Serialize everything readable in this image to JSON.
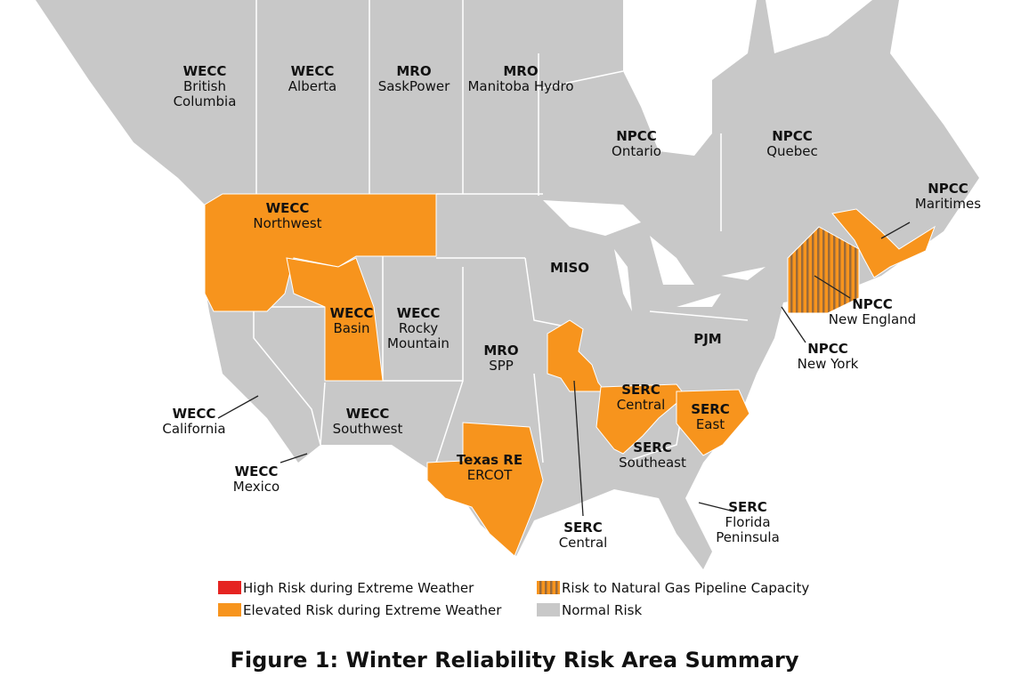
{
  "title": "Figure 1: Winter Reliability Risk Area Summary",
  "legend": [
    {
      "label": "High Risk during Extreme Weather",
      "color": "#e52421"
    },
    {
      "label": "Elevated Risk during Extreme Weather",
      "color": "#f7941d"
    },
    {
      "label": "Risk to Natural Gas Pipeline Capacity",
      "color": "#f7941d",
      "stripe_color": "#9a6a3a"
    },
    {
      "label": "Normal Risk",
      "color": "#c8c8c8"
    }
  ],
  "regions": [
    {
      "org": "WECC",
      "lines": [
        "British",
        "Columbia"
      ],
      "color": "#c8c8c8"
    },
    {
      "org": "WECC",
      "lines": [
        "Alberta"
      ],
      "color": "#c8c8c8"
    },
    {
      "org": "MRO",
      "lines": [
        "SaskPower"
      ],
      "color": "#c8c8c8"
    },
    {
      "org": "MRO",
      "lines": [
        "Manitoba Hydro"
      ],
      "color": "#c8c8c8"
    },
    {
      "org": "NPCC",
      "lines": [
        "Ontario"
      ],
      "color": "#c8c8c8"
    },
    {
      "org": "NPCC",
      "lines": [
        "Quebec"
      ],
      "color": "#c8c8c8"
    },
    {
      "org": "NPCC",
      "lines": [
        "Maritimes"
      ],
      "color": "#f7941d"
    },
    {
      "org": "WECC",
      "lines": [
        "Northwest"
      ],
      "color": "#f7941d"
    },
    {
      "org": "MISO",
      "lines": [],
      "color": "#c8c8c8"
    },
    {
      "org": "NPCC",
      "lines": [
        "New England"
      ],
      "color": "#f7941d",
      "stripe_color": "#9a6a3a"
    },
    {
      "org": "WECC",
      "lines": [
        "Basin"
      ],
      "color": "#f7941d"
    },
    {
      "org": "WECC",
      "lines": [
        "Rocky",
        "Mountain"
      ],
      "color": "#c8c8c8"
    },
    {
      "org": "MRO",
      "lines": [
        "SPP"
      ],
      "color": "#c8c8c8"
    },
    {
      "org": "PJM",
      "lines": [],
      "color": "#c8c8c8"
    },
    {
      "org": "NPCC",
      "lines": [
        "New York"
      ],
      "color": "#c8c8c8"
    },
    {
      "org": "SERC",
      "lines": [
        "Central"
      ],
      "color": "#f7941d"
    },
    {
      "org": "SERC",
      "lines": [
        "East"
      ],
      "color": "#f7941d"
    },
    {
      "org": "WECC",
      "lines": [
        "California"
      ],
      "color": "#c8c8c8"
    },
    {
      "org": "WECC",
      "lines": [
        "Southwest"
      ],
      "color": "#c8c8c8"
    },
    {
      "org": "SERC",
      "lines": [
        "Southeast"
      ],
      "color": "#c8c8c8"
    },
    {
      "org": "Texas RE",
      "lines": [
        "ERCOT"
      ],
      "color": "#f7941d"
    },
    {
      "org": "WECC",
      "lines": [
        "Mexico"
      ],
      "color": "#c8c8c8"
    },
    {
      "org": "SERC",
      "lines": [
        "Florida",
        "Peninsula"
      ],
      "color": "#c8c8c8"
    },
    {
      "org": "SERC",
      "lines": [
        "Central"
      ],
      "color": "#f7941d"
    }
  ]
}
